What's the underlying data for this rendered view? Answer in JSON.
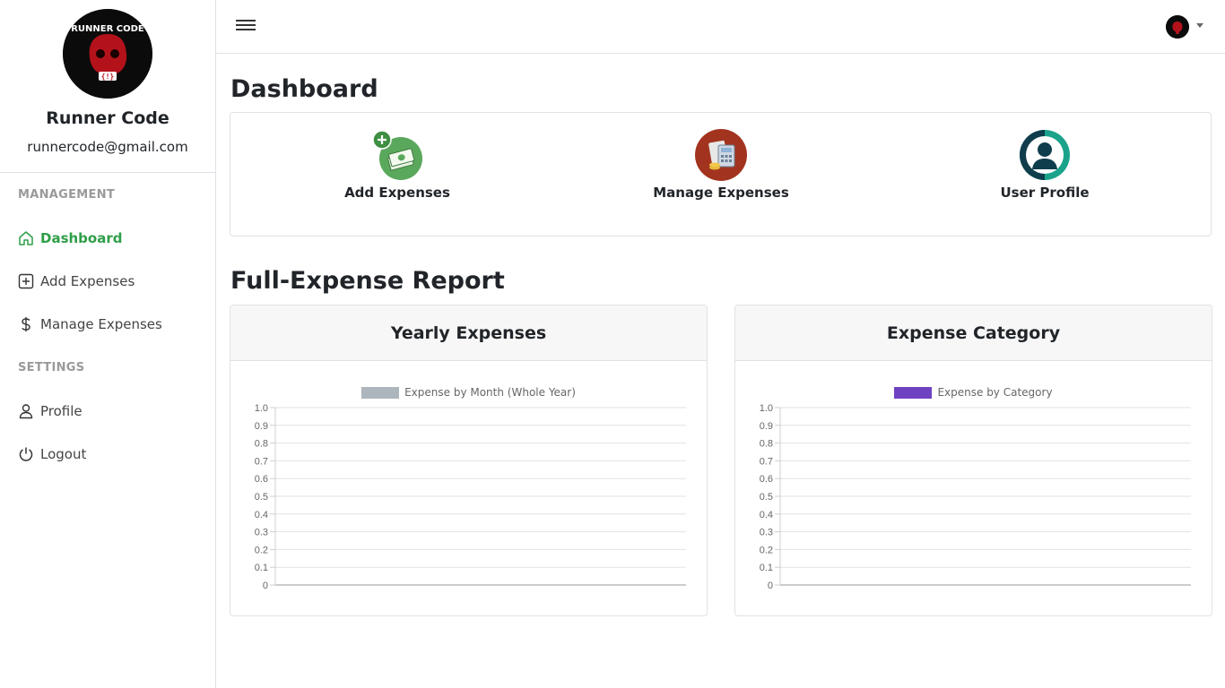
{
  "sidebar": {
    "user_name": "Runner Code",
    "user_email": "runnercode@gmail.com",
    "sections": {
      "management": "MANAGEMENT",
      "settings": "SETTINGS"
    },
    "items": [
      {
        "label": "Dashboard",
        "icon": "home-icon",
        "active": true
      },
      {
        "label": "Add Expenses",
        "icon": "plus-square-icon"
      },
      {
        "label": "Manage Expenses",
        "icon": "dollar-icon"
      },
      {
        "label": "Profile",
        "icon": "person-icon"
      },
      {
        "label": "Logout",
        "icon": "power-icon"
      }
    ]
  },
  "header": {
    "menu_icon": "hamburger-icon",
    "avatar_icon": "avatar-icon"
  },
  "dashboard": {
    "title": "Dashboard",
    "cards": [
      {
        "label": "Add Expenses",
        "icon": "add-money-icon"
      },
      {
        "label": "Manage Expenses",
        "icon": "calculator-icon"
      },
      {
        "label": "User Profile",
        "icon": "user-circle-icon"
      }
    ]
  },
  "report": {
    "title": "Full-Expense Report"
  },
  "colors": {
    "accent": "#2e9e48",
    "legend_yearly": "#adb5bd",
    "legend_category": "#6f42c1"
  },
  "chart_data": [
    {
      "type": "bar",
      "title": "Yearly Expenses",
      "legend": "Expense by Month (Whole Year)",
      "categories": [],
      "series": [
        {
          "name": "Expense by Month (Whole Year)",
          "values": []
        }
      ],
      "ylim": [
        0,
        1.0
      ],
      "yticks": [
        "1.0",
        "0.9",
        "0.8",
        "0.7",
        "0.6",
        "0.5",
        "0.4",
        "0.3",
        "0.2",
        "0.1",
        "0"
      ],
      "grid": true,
      "legend_position": "top"
    },
    {
      "type": "bar",
      "title": "Expense Category",
      "legend": "Expense by Category",
      "categories": [],
      "series": [
        {
          "name": "Expense by Category",
          "values": []
        }
      ],
      "ylim": [
        0,
        1.0
      ],
      "yticks": [
        "1.0",
        "0.9",
        "0.8",
        "0.7",
        "0.6",
        "0.5",
        "0.4",
        "0.3",
        "0.2",
        "0.1",
        "0"
      ],
      "grid": true,
      "legend_position": "top"
    }
  ]
}
